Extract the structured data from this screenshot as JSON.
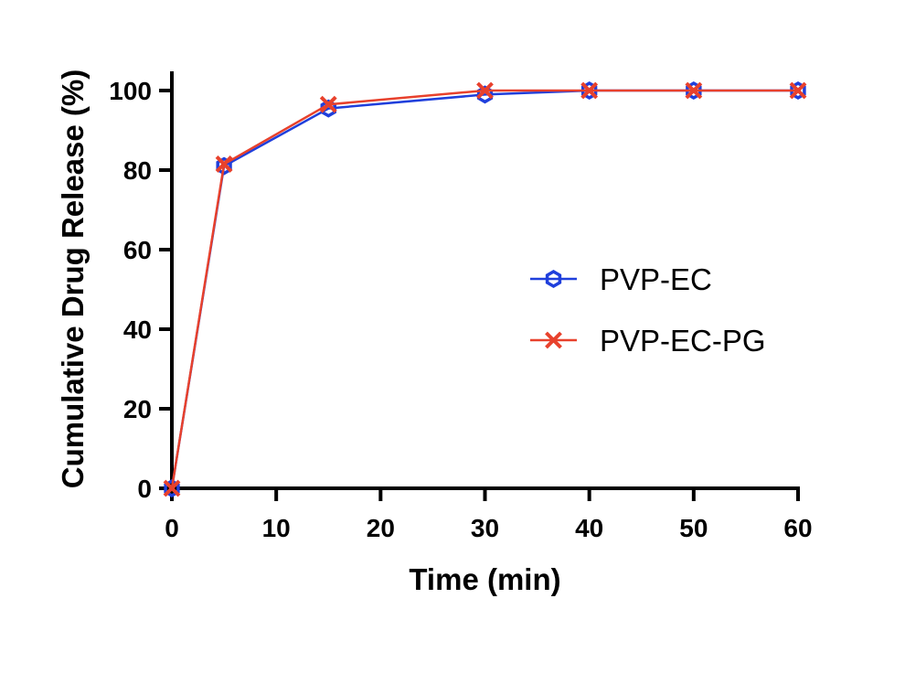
{
  "chart_data": {
    "type": "line",
    "title": "",
    "xlabel": "Time (min)",
    "ylabel": "Cumulative Drug Release (%)",
    "xlim": [
      0,
      60
    ],
    "ylim": [
      0,
      100
    ],
    "xticks": [
      0,
      10,
      20,
      30,
      40,
      50,
      60
    ],
    "yticks": [
      0,
      20,
      40,
      60,
      80,
      100
    ],
    "grid": false,
    "legend_position": "center-right",
    "series": [
      {
        "name": "PVP-EC",
        "color": "#1f3fdc",
        "marker": "hexagon-open",
        "x": [
          0,
          5,
          15,
          30,
          40,
          50,
          60
        ],
        "y": [
          0,
          81,
          95.5,
          99,
          100,
          100,
          100
        ]
      },
      {
        "name": "PVP-EC-PG",
        "color": "#e8412c",
        "marker": "x",
        "x": [
          0,
          5,
          15,
          30,
          40,
          50,
          60
        ],
        "y": [
          0,
          81.5,
          96.5,
          100,
          100,
          100,
          100
        ]
      }
    ]
  }
}
